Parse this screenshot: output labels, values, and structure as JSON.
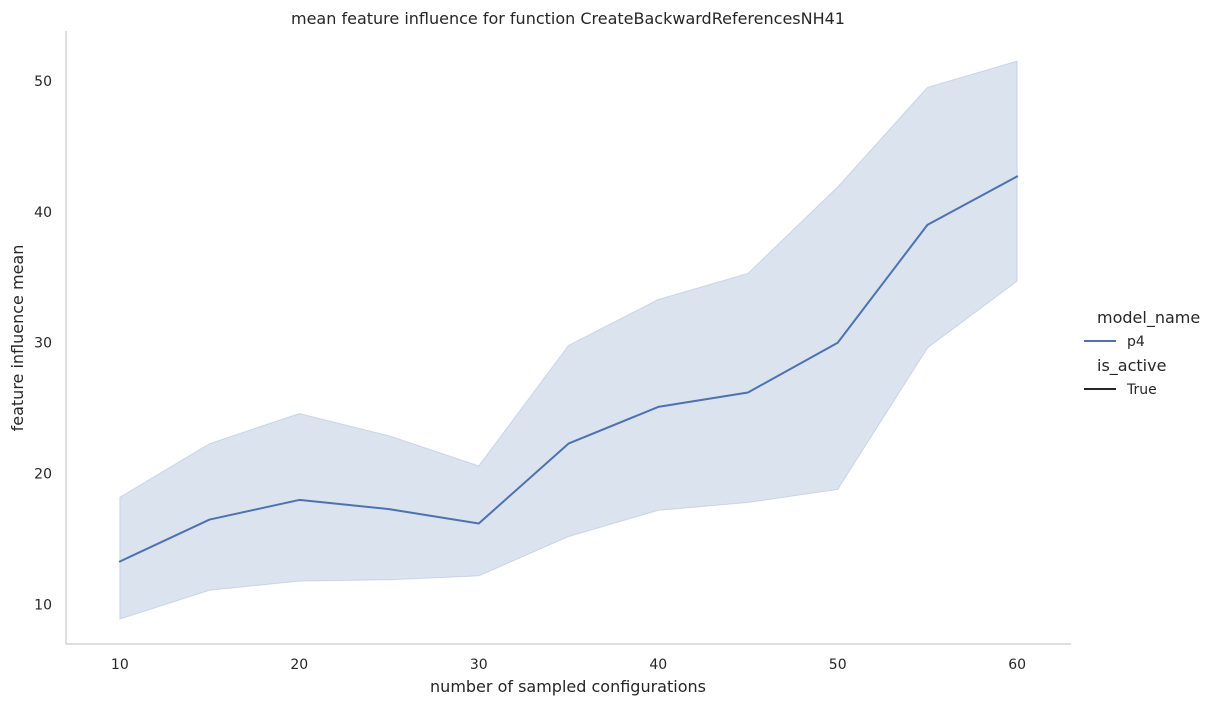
{
  "chart_data": {
    "type": "line",
    "title": "mean feature influence for function CreateBackwardReferencesNH41",
    "xlabel": "number of sampled configurations",
    "ylabel": "feature influence mean",
    "xlim": [
      7,
      63
    ],
    "ylim": [
      7,
      53.8
    ],
    "xticks": [
      10,
      20,
      30,
      40,
      50,
      60
    ],
    "yticks": [
      10,
      20,
      30,
      40,
      50
    ],
    "grid": false,
    "legend_position": "right",
    "legend": {
      "hue_title": "model_name",
      "style_title": "is_active",
      "entries": [
        {
          "group": "model_name",
          "label": "p4",
          "color": "#4c72b0"
        },
        {
          "group": "is_active",
          "label": "True",
          "color": "#262626"
        }
      ]
    },
    "series": [
      {
        "name": "p4",
        "is_active": "True",
        "color": "#4c72b0",
        "x": [
          10,
          15,
          20,
          25,
          30,
          35,
          40,
          45,
          50,
          55,
          60
        ],
        "y": [
          13.3,
          16.5,
          18.0,
          17.3,
          16.2,
          22.3,
          25.1,
          26.2,
          30.0,
          39.0,
          42.7
        ],
        "ci_low": [
          8.9,
          11.1,
          11.8,
          11.9,
          12.2,
          15.2,
          17.2,
          17.8,
          18.8,
          29.6,
          34.7
        ],
        "ci_high": [
          18.2,
          22.3,
          24.6,
          22.9,
          20.6,
          29.8,
          33.3,
          35.3,
          41.9,
          49.5,
          51.5
        ]
      }
    ]
  }
}
